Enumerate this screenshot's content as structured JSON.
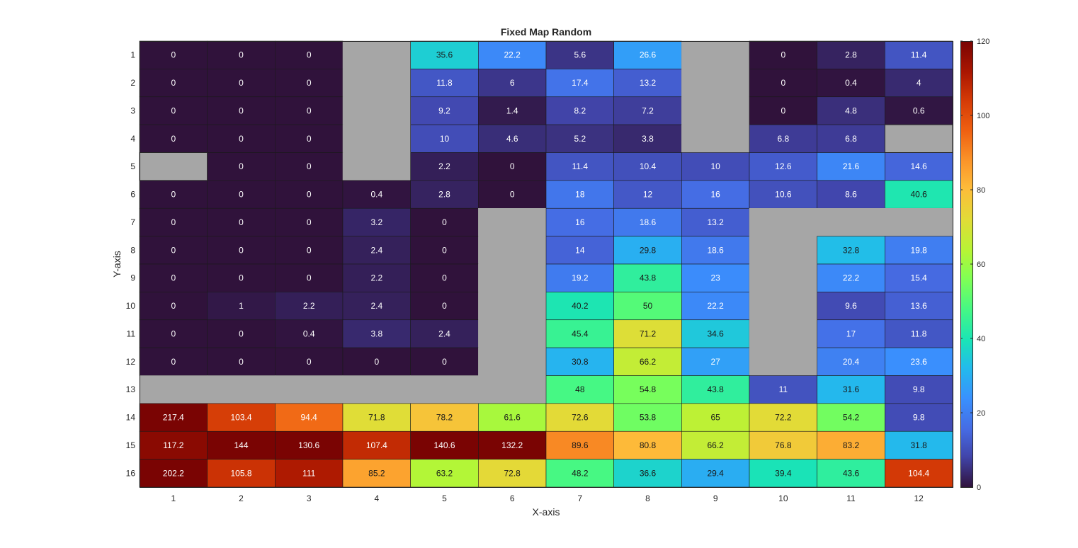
{
  "chart_data": {
    "type": "heatmap",
    "title": "Fixed Map Random",
    "xlabel": "X-axis",
    "ylabel": "Y-axis",
    "x_categories": [
      "1",
      "2",
      "3",
      "4",
      "5",
      "6",
      "7",
      "8",
      "9",
      "10",
      "11",
      "12"
    ],
    "y_categories": [
      "1",
      "2",
      "3",
      "4",
      "5",
      "6",
      "7",
      "8",
      "9",
      "10",
      "11",
      "12",
      "13",
      "14",
      "15",
      "16"
    ],
    "colormap": "turbo",
    "color_limits": [
      0,
      120
    ],
    "colorbar_ticks": [
      "0",
      "20",
      "40",
      "60",
      "80",
      "100",
      "120"
    ],
    "missing_color": "#a6a6a6",
    "values": [
      [
        "0",
        "0",
        "0",
        null,
        "35.6",
        "22.2",
        "5.6",
        "26.6",
        null,
        "0",
        "2.8",
        "11.4"
      ],
      [
        "0",
        "0",
        "0",
        null,
        "11.8",
        "6",
        "17.4",
        "13.2",
        null,
        "0",
        "0.4",
        "4"
      ],
      [
        "0",
        "0",
        "0",
        null,
        "9.2",
        "1.4",
        "8.2",
        "7.2",
        null,
        "0",
        "4.8",
        "0.6"
      ],
      [
        "0",
        "0",
        "0",
        null,
        "10",
        "4.6",
        "5.2",
        "3.8",
        null,
        "6.8",
        "6.8",
        null
      ],
      [
        null,
        "0",
        "0",
        null,
        "2.2",
        "0",
        "11.4",
        "10.4",
        "10",
        "12.6",
        "21.6",
        "14.6"
      ],
      [
        "0",
        "0",
        "0",
        "0.4",
        "2.8",
        "0",
        "18",
        "12",
        "16",
        "10.6",
        "8.6",
        "40.6"
      ],
      [
        "0",
        "0",
        "0",
        "3.2",
        "0",
        null,
        "16",
        "18.6",
        "13.2",
        null,
        null,
        null
      ],
      [
        "0",
        "0",
        "0",
        "2.4",
        "0",
        null,
        "14",
        "29.8",
        "18.6",
        null,
        "32.8",
        "19.8"
      ],
      [
        "0",
        "0",
        "0",
        "2.2",
        "0",
        null,
        "19.2",
        "43.8",
        "23",
        null,
        "22.2",
        "15.4"
      ],
      [
        "0",
        "1",
        "2.2",
        "2.4",
        "0",
        null,
        "40.2",
        "50",
        "22.2",
        null,
        "9.6",
        "13.6"
      ],
      [
        "0",
        "0",
        "0.4",
        "3.8",
        "2.4",
        null,
        "45.4",
        "71.2",
        "34.6",
        null,
        "17",
        "11.8"
      ],
      [
        "0",
        "0",
        "0",
        "0",
        "0",
        null,
        "30.8",
        "66.2",
        "27",
        null,
        "20.4",
        "23.6"
      ],
      [
        null,
        null,
        null,
        null,
        null,
        null,
        "48",
        "54.8",
        "43.8",
        "11",
        "31.6",
        "9.8"
      ],
      [
        "217.4",
        "103.4",
        "94.4",
        "71.8",
        "78.2",
        "61.6",
        "72.6",
        "53.8",
        "65",
        "72.2",
        "54.2",
        "9.8"
      ],
      [
        "117.2",
        "144",
        "130.6",
        "107.4",
        "140.6",
        "132.2",
        "89.6",
        "80.8",
        "66.2",
        "76.8",
        "83.2",
        "31.8"
      ],
      [
        "202.2",
        "105.8",
        "111",
        "85.2",
        "63.2",
        "72.8",
        "48.2",
        "36.6",
        "29.4",
        "39.4",
        "43.6",
        "104.4"
      ]
    ],
    "grid": false,
    "legend": "colorbar-right"
  }
}
